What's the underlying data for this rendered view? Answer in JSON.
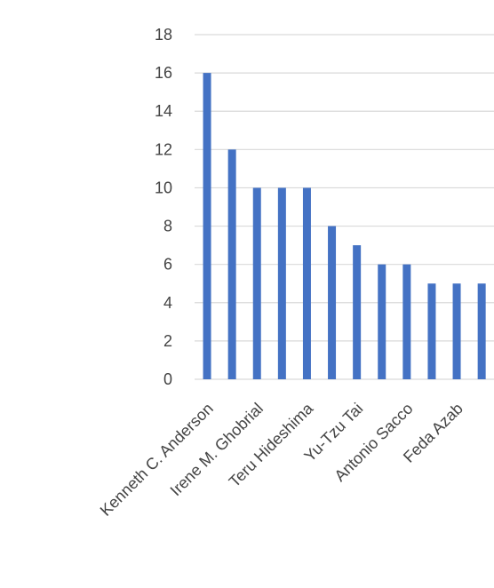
{
  "chart_data": {
    "type": "bar",
    "categories": [
      "Kenneth C. Anderson",
      null,
      "Irene M. Ghobrial",
      null,
      "Teru Hideshima",
      null,
      "Yu-Tzu Tai",
      null,
      "Antonio Sacco",
      null,
      "Feda Azab",
      null
    ],
    "values": [
      16,
      12,
      10,
      10,
      10,
      8,
      7,
      6,
      6,
      5,
      5,
      5
    ],
    "color": "#4472c4",
    "ylim": [
      0,
      18
    ],
    "yticks": [
      0,
      2,
      4,
      6,
      8,
      10,
      12,
      14,
      16,
      18
    ],
    "grid": true
  }
}
